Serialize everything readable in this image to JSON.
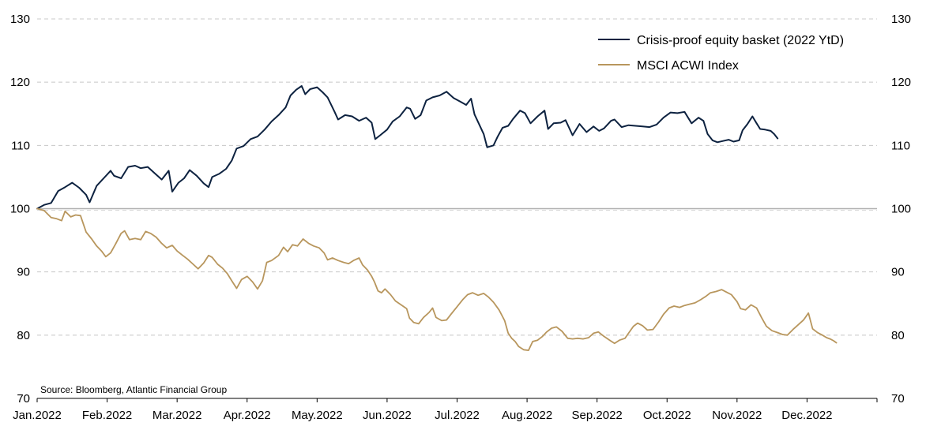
{
  "chart_data": {
    "type": "line",
    "title": "",
    "xlabel": "",
    "ylabel": "",
    "ylim": [
      70,
      130
    ],
    "y_ticks": [
      70,
      80,
      90,
      100,
      110,
      120,
      130
    ],
    "x_tick_labels": [
      "Jan.2022",
      "Feb.2022",
      "Mar.2022",
      "Apr.2022",
      "May.2022",
      "Jun.2022",
      "Jul.2022",
      "Aug.2022",
      "Sep.2022",
      "Oct.2022",
      "Nov.2022",
      "Dec.2022"
    ],
    "x_unit": "month index from Jan.2022",
    "x_range": [
      0,
      12
    ],
    "secondary_y_axis": true,
    "grid": "horizontal dashed",
    "baseline": 100,
    "legend_position": "top-right",
    "source": "Source: Bloomberg, Atlantic Financial Group",
    "series": [
      {
        "name": "Crisis-proof equity basket (2022 YtD)",
        "color": "#0d2240",
        "points": [
          [
            0.0,
            100.0
          ],
          [
            0.1,
            100.6
          ],
          [
            0.2,
            100.9
          ],
          [
            0.3,
            102.8
          ],
          [
            0.4,
            103.4
          ],
          [
            0.5,
            104.1
          ],
          [
            0.6,
            103.3
          ],
          [
            0.7,
            102.2
          ],
          [
            0.75,
            101.0
          ],
          [
            0.85,
            103.6
          ],
          [
            0.95,
            104.8
          ],
          [
            1.05,
            106.0
          ],
          [
            1.1,
            105.2
          ],
          [
            1.2,
            104.8
          ],
          [
            1.3,
            106.6
          ],
          [
            1.4,
            106.8
          ],
          [
            1.48,
            106.4
          ],
          [
            1.58,
            106.6
          ],
          [
            1.68,
            105.6
          ],
          [
            1.78,
            104.6
          ],
          [
            1.88,
            106.0
          ],
          [
            1.93,
            102.7
          ],
          [
            2.02,
            104.1
          ],
          [
            2.1,
            104.8
          ],
          [
            2.18,
            106.1
          ],
          [
            2.28,
            105.2
          ],
          [
            2.38,
            104.0
          ],
          [
            2.45,
            103.4
          ],
          [
            2.5,
            105.0
          ],
          [
            2.6,
            105.5
          ],
          [
            2.7,
            106.3
          ],
          [
            2.78,
            107.6
          ],
          [
            2.85,
            109.5
          ],
          [
            2.95,
            109.9
          ],
          [
            3.05,
            111.0
          ],
          [
            3.15,
            111.4
          ],
          [
            3.25,
            112.5
          ],
          [
            3.35,
            113.8
          ],
          [
            3.45,
            114.8
          ],
          [
            3.55,
            116.0
          ],
          [
            3.62,
            117.9
          ],
          [
            3.7,
            118.8
          ],
          [
            3.78,
            119.4
          ],
          [
            3.83,
            118.1
          ],
          [
            3.9,
            118.9
          ],
          [
            4.0,
            119.2
          ],
          [
            4.08,
            118.4
          ],
          [
            4.15,
            117.6
          ],
          [
            4.25,
            115.3
          ],
          [
            4.3,
            114.1
          ],
          [
            4.4,
            114.8
          ],
          [
            4.5,
            114.6
          ],
          [
            4.6,
            113.9
          ],
          [
            4.7,
            114.4
          ],
          [
            4.78,
            113.6
          ],
          [
            4.83,
            111.0
          ],
          [
            4.9,
            111.6
          ],
          [
            5.0,
            112.5
          ],
          [
            5.08,
            113.8
          ],
          [
            5.18,
            114.6
          ],
          [
            5.28,
            116.0
          ],
          [
            5.33,
            115.8
          ],
          [
            5.4,
            114.2
          ],
          [
            5.48,
            114.8
          ],
          [
            5.56,
            117.1
          ],
          [
            5.65,
            117.6
          ],
          [
            5.75,
            117.9
          ],
          [
            5.85,
            118.5
          ],
          [
            5.95,
            117.5
          ],
          [
            6.05,
            116.9
          ],
          [
            6.13,
            116.4
          ],
          [
            6.2,
            117.4
          ],
          [
            6.25,
            114.9
          ],
          [
            6.3,
            113.7
          ],
          [
            6.38,
            111.8
          ],
          [
            6.43,
            109.7
          ],
          [
            6.52,
            110.0
          ],
          [
            6.58,
            111.4
          ],
          [
            6.65,
            112.8
          ],
          [
            6.73,
            113.1
          ],
          [
            6.8,
            114.2
          ],
          [
            6.9,
            115.5
          ],
          [
            6.97,
            115.1
          ],
          [
            7.05,
            113.5
          ],
          [
            7.15,
            114.6
          ],
          [
            7.25,
            115.5
          ],
          [
            7.3,
            112.6
          ],
          [
            7.38,
            113.5
          ],
          [
            7.48,
            113.6
          ],
          [
            7.55,
            114.0
          ],
          [
            7.65,
            111.6
          ],
          [
            7.75,
            113.4
          ],
          [
            7.85,
            112.1
          ],
          [
            7.95,
            113.0
          ],
          [
            8.03,
            112.3
          ],
          [
            8.1,
            112.7
          ],
          [
            8.2,
            113.9
          ],
          [
            8.25,
            114.1
          ],
          [
            8.35,
            112.9
          ],
          [
            8.45,
            113.2
          ],
          [
            8.55,
            113.1
          ],
          [
            8.65,
            113.0
          ],
          [
            8.75,
            112.9
          ],
          [
            8.85,
            113.3
          ],
          [
            8.95,
            114.4
          ],
          [
            9.05,
            115.2
          ],
          [
            9.15,
            115.1
          ],
          [
            9.25,
            115.3
          ],
          [
            9.35,
            113.5
          ],
          [
            9.45,
            114.4
          ],
          [
            9.52,
            113.9
          ],
          [
            9.58,
            111.8
          ],
          [
            9.65,
            110.8
          ],
          [
            9.72,
            110.5
          ],
          [
            9.8,
            110.7
          ],
          [
            9.88,
            110.9
          ],
          [
            9.95,
            110.6
          ],
          [
            10.03,
            110.8
          ],
          [
            10.08,
            112.4
          ],
          [
            10.15,
            113.4
          ],
          [
            10.22,
            114.6
          ],
          [
            10.28,
            113.5
          ],
          [
            10.33,
            112.6
          ],
          [
            10.4,
            112.5
          ],
          [
            10.48,
            112.3
          ],
          [
            10.53,
            111.8
          ],
          [
            10.58,
            111.1
          ]
        ]
      },
      {
        "name": "MSCI ACWI Index",
        "color": "#b8965d",
        "points": [
          [
            0.0,
            100.0
          ],
          [
            0.1,
            99.7
          ],
          [
            0.2,
            98.6
          ],
          [
            0.28,
            98.4
          ],
          [
            0.35,
            98.1
          ],
          [
            0.4,
            99.6
          ],
          [
            0.48,
            98.7
          ],
          [
            0.55,
            99.0
          ],
          [
            0.62,
            98.9
          ],
          [
            0.7,
            96.3
          ],
          [
            0.78,
            95.2
          ],
          [
            0.85,
            94.1
          ],
          [
            0.92,
            93.3
          ],
          [
            0.98,
            92.4
          ],
          [
            1.05,
            93.0
          ],
          [
            1.12,
            94.4
          ],
          [
            1.2,
            96.1
          ],
          [
            1.25,
            96.5
          ],
          [
            1.32,
            95.1
          ],
          [
            1.4,
            95.3
          ],
          [
            1.48,
            95.1
          ],
          [
            1.55,
            96.4
          ],
          [
            1.62,
            96.1
          ],
          [
            1.7,
            95.5
          ],
          [
            1.78,
            94.5
          ],
          [
            1.85,
            93.8
          ],
          [
            1.93,
            94.2
          ],
          [
            2.0,
            93.3
          ],
          [
            2.08,
            92.6
          ],
          [
            2.15,
            92.0
          ],
          [
            2.23,
            91.2
          ],
          [
            2.3,
            90.5
          ],
          [
            2.38,
            91.4
          ],
          [
            2.45,
            92.6
          ],
          [
            2.5,
            92.3
          ],
          [
            2.58,
            91.2
          ],
          [
            2.65,
            90.6
          ],
          [
            2.72,
            89.7
          ],
          [
            2.78,
            88.6
          ],
          [
            2.85,
            87.4
          ],
          [
            2.92,
            88.8
          ],
          [
            3.0,
            89.3
          ],
          [
            3.08,
            88.4
          ],
          [
            3.15,
            87.3
          ],
          [
            3.22,
            88.6
          ],
          [
            3.28,
            91.5
          ],
          [
            3.35,
            91.8
          ],
          [
            3.45,
            92.6
          ],
          [
            3.52,
            93.9
          ],
          [
            3.58,
            93.2
          ],
          [
            3.65,
            94.3
          ],
          [
            3.72,
            94.1
          ],
          [
            3.8,
            95.2
          ],
          [
            3.88,
            94.5
          ],
          [
            3.95,
            94.1
          ],
          [
            4.03,
            93.8
          ],
          [
            4.1,
            93.0
          ],
          [
            4.15,
            91.9
          ],
          [
            4.22,
            92.2
          ],
          [
            4.3,
            91.8
          ],
          [
            4.38,
            91.5
          ],
          [
            4.45,
            91.3
          ],
          [
            4.52,
            91.8
          ],
          [
            4.6,
            92.2
          ],
          [
            4.65,
            91.1
          ],
          [
            4.72,
            90.3
          ],
          [
            4.78,
            89.3
          ],
          [
            4.82,
            88.4
          ],
          [
            4.87,
            87.0
          ],
          [
            4.92,
            86.7
          ],
          [
            4.97,
            87.3
          ],
          [
            5.05,
            86.4
          ],
          [
            5.12,
            85.4
          ],
          [
            5.2,
            84.8
          ],
          [
            5.28,
            84.2
          ],
          [
            5.32,
            82.7
          ],
          [
            5.38,
            82.0
          ],
          [
            5.45,
            81.8
          ],
          [
            5.52,
            82.8
          ],
          [
            5.6,
            83.6
          ],
          [
            5.65,
            84.3
          ],
          [
            5.7,
            82.8
          ],
          [
            5.78,
            82.3
          ],
          [
            5.85,
            82.4
          ],
          [
            5.92,
            83.4
          ],
          [
            6.0,
            84.5
          ],
          [
            6.08,
            85.6
          ],
          [
            6.15,
            86.4
          ],
          [
            6.22,
            86.7
          ],
          [
            6.3,
            86.3
          ],
          [
            6.38,
            86.6
          ],
          [
            6.45,
            86.0
          ],
          [
            6.52,
            85.2
          ],
          [
            6.6,
            84.0
          ],
          [
            6.68,
            82.3
          ],
          [
            6.73,
            80.3
          ],
          [
            6.78,
            79.5
          ],
          [
            6.83,
            79.0
          ],
          [
            6.88,
            78.2
          ],
          [
            6.95,
            77.7
          ],
          [
            7.02,
            77.6
          ],
          [
            7.08,
            79.0
          ],
          [
            7.15,
            79.2
          ],
          [
            7.22,
            79.8
          ],
          [
            7.28,
            80.5
          ],
          [
            7.35,
            81.1
          ],
          [
            7.42,
            81.3
          ],
          [
            7.5,
            80.6
          ],
          [
            7.58,
            79.5
          ],
          [
            7.65,
            79.4
          ],
          [
            7.72,
            79.5
          ],
          [
            7.8,
            79.4
          ],
          [
            7.88,
            79.6
          ],
          [
            7.95,
            80.3
          ],
          [
            8.02,
            80.5
          ],
          [
            8.1,
            79.8
          ],
          [
            8.18,
            79.2
          ],
          [
            8.25,
            78.7
          ],
          [
            8.32,
            79.2
          ],
          [
            8.4,
            79.5
          ],
          [
            8.45,
            80.3
          ],
          [
            8.52,
            81.4
          ],
          [
            8.58,
            81.9
          ],
          [
            8.65,
            81.5
          ],
          [
            8.72,
            80.8
          ],
          [
            8.8,
            80.9
          ],
          [
            8.88,
            82.1
          ],
          [
            8.95,
            83.3
          ],
          [
            9.03,
            84.3
          ],
          [
            9.1,
            84.6
          ],
          [
            9.18,
            84.4
          ],
          [
            9.25,
            84.7
          ],
          [
            9.32,
            84.9
          ],
          [
            9.4,
            85.1
          ],
          [
            9.48,
            85.6
          ],
          [
            9.55,
            86.1
          ],
          [
            9.62,
            86.7
          ],
          [
            9.7,
            86.9
          ],
          [
            9.78,
            87.2
          ],
          [
            9.85,
            86.8
          ],
          [
            9.92,
            86.4
          ],
          [
            10.0,
            85.3
          ],
          [
            10.05,
            84.2
          ],
          [
            10.12,
            84.0
          ],
          [
            10.2,
            84.8
          ],
          [
            10.28,
            84.3
          ],
          [
            10.35,
            82.8
          ],
          [
            10.42,
            81.4
          ],
          [
            10.5,
            80.7
          ],
          [
            10.58,
            80.4
          ],
          [
            10.65,
            80.1
          ],
          [
            10.72,
            80.0
          ],
          [
            10.8,
            80.9
          ],
          [
            10.88,
            81.7
          ],
          [
            10.95,
            82.4
          ],
          [
            11.02,
            83.5
          ],
          [
            11.08,
            81.0
          ],
          [
            11.15,
            80.4
          ],
          [
            11.22,
            80.0
          ],
          [
            11.28,
            79.6
          ],
          [
            11.33,
            79.4
          ],
          [
            11.38,
            79.1
          ],
          [
            11.42,
            78.8
          ]
        ]
      }
    ]
  }
}
